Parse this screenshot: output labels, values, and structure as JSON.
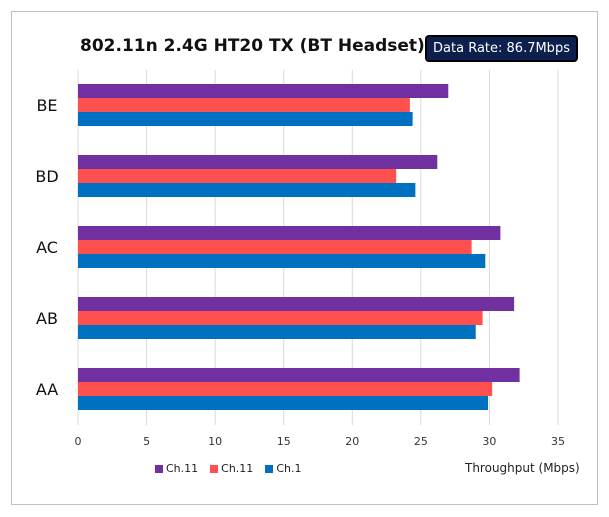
{
  "chart_data": {
    "type": "bar",
    "orientation": "horizontal",
    "title": "802.11n 2.4G HT20 TX (BT Headset)",
    "badge": "Data Rate: 86.7Mbps",
    "xlabel": "Throughput (Mbps)",
    "ylabel": "",
    "xlim": [
      0,
      35
    ],
    "xticks": [
      0,
      5,
      10,
      15,
      20,
      25,
      30,
      35
    ],
    "grid": "vertical",
    "legend_position": "bottom-left",
    "categories": [
      "BE",
      "BD",
      "AC",
      "AB",
      "AA"
    ],
    "series": [
      {
        "name": "Ch.11",
        "color": "#7030a0",
        "values": [
          27.0,
          26.2,
          30.8,
          31.8,
          32.2
        ]
      },
      {
        "name": "Ch.11",
        "color": "#ff5050",
        "values": [
          24.2,
          23.2,
          28.7,
          29.5,
          30.2
        ]
      },
      {
        "name": "Ch.1",
        "color": "#0070c0",
        "values": [
          24.4,
          24.6,
          29.7,
          29.0,
          29.9
        ]
      }
    ]
  }
}
